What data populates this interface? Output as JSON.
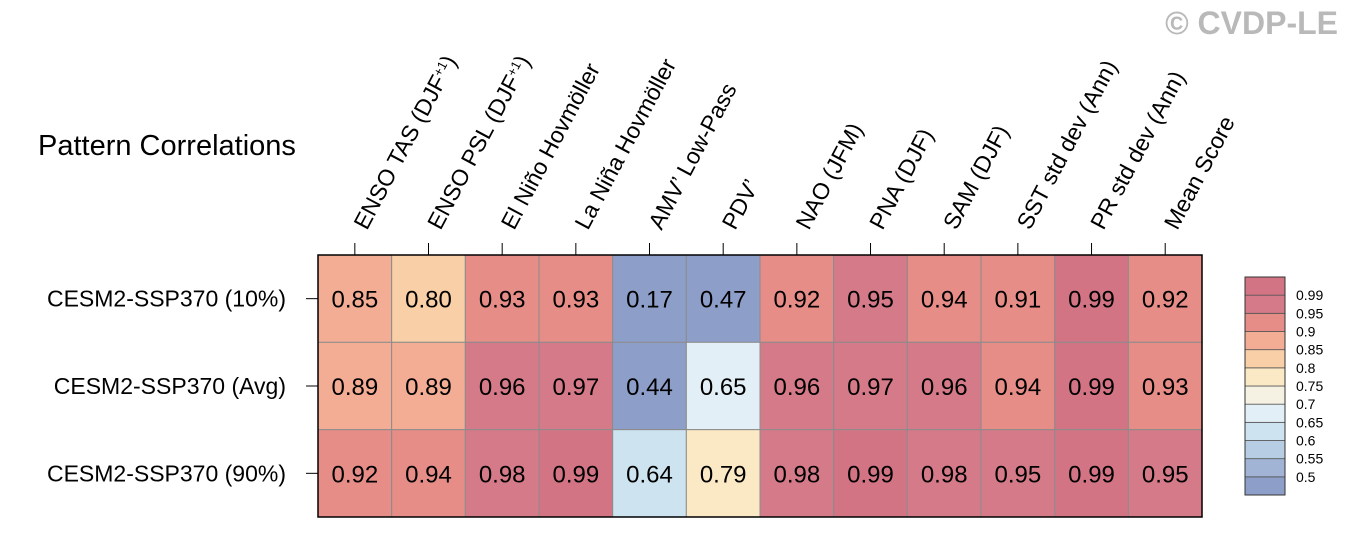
{
  "chart_data": {
    "type": "heatmap",
    "title": "Pattern Correlations",
    "watermark": "© CVDP-LE",
    "columns": [
      "ENSO TAS (DJF+1)",
      "ENSO PSL (DJF+1)",
      "El Niño Hovmöller",
      "La Niña Hovmöller",
      "AMV’ Low-Pass",
      "PDV’",
      "NAO (JFM)",
      "PNA (DJF)",
      "SAM (DJF)",
      "SST std dev (Ann)",
      "PR std dev (Ann)",
      "Mean Score"
    ],
    "rows": [
      "CESM2-SSP370 (10%)",
      "CESM2-SSP370 (Avg)",
      "CESM2-SSP370 (90%)"
    ],
    "values": [
      [
        0.85,
        0.8,
        0.93,
        0.93,
        0.17,
        0.47,
        0.92,
        0.95,
        0.94,
        0.91,
        0.99,
        0.92
      ],
      [
        0.89,
        0.89,
        0.96,
        0.97,
        0.44,
        0.65,
        0.96,
        0.97,
        0.96,
        0.94,
        0.99,
        0.93
      ],
      [
        0.92,
        0.94,
        0.98,
        0.99,
        0.64,
        0.79,
        0.98,
        0.99,
        0.98,
        0.95,
        0.99,
        0.95
      ]
    ],
    "colorbar": {
      "labels": [
        "0.99",
        "0.95",
        "0.9",
        "0.85",
        "0.8",
        "0.75",
        "0.7",
        "0.65",
        "0.6",
        "0.55",
        "0.5"
      ],
      "levels": [
        0.5,
        0.55,
        0.6,
        0.65,
        0.7,
        0.75,
        0.8,
        0.85,
        0.9,
        0.95,
        0.99
      ],
      "colors": [
        "#8d9fc9",
        "#a1b4d6",
        "#b7cde3",
        "#cde3ef",
        "#e3eff6",
        "#f5f2e3",
        "#fbe8c4",
        "#f8cfa6",
        "#f3ad94",
        "#e68d87",
        "#d57a88",
        "#d27484"
      ]
    }
  }
}
